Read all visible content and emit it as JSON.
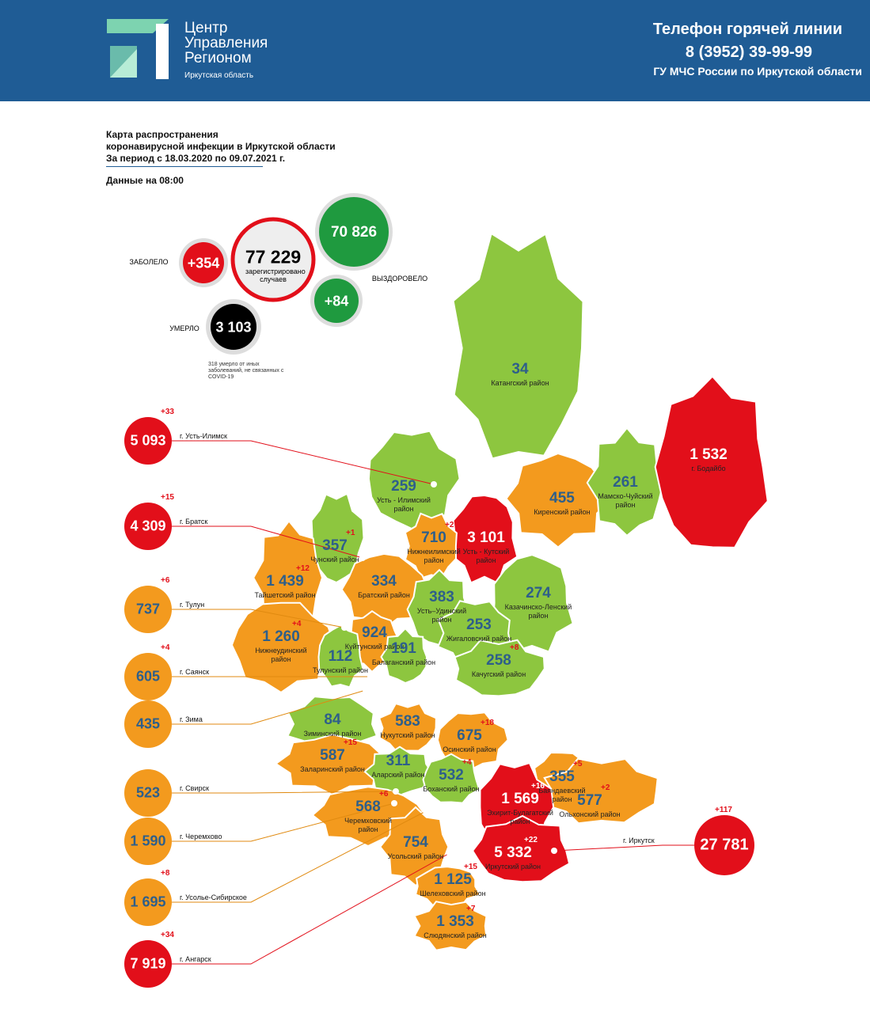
{
  "header": {
    "logo_lines": [
      "Центр",
      "Управления",
      "Регионом"
    ],
    "logo_region": "Иркутская область",
    "hotline_title": "Телефон горячей линии",
    "hotline_phone": "8 (3952) 39-99-99",
    "hotline_org": "ГУ МЧС России по Иркутской области"
  },
  "title": {
    "lines": [
      "Карта распространения",
      "коронавирусной инфекции в Иркутской области",
      "За период с 18.03.2020 по 09.07.2021 г."
    ],
    "data_time": "Данные на 08:00"
  },
  "stats": {
    "infected_label": "ЗАБОЛЕЛО",
    "infected_delta": "+354",
    "total": "77 229",
    "total_caption": "зарегистрировано случаев",
    "recovered": "70 826",
    "recovered_label": "ВЫЗДОРОВЕЛО",
    "recovered_delta": "+84",
    "died_label": "УМЕРЛО",
    "died": "3 103",
    "died_note": "318 умерло от иных заболеваний, не связанных с COVID-19"
  },
  "districts": [
    {
      "value": "34",
      "name": "Катангский район",
      "color": "#8dc63f"
    },
    {
      "value": "259",
      "name": "Усть - Илимский район",
      "color": "#8dc63f"
    },
    {
      "value": "455",
      "name": "Киренский район",
      "color": "#f39a1e"
    },
    {
      "value": "261",
      "name": "Мамско-Чуйский район",
      "color": "#8dc63f"
    },
    {
      "value": "1 532",
      "name": "г. Бодайбо",
      "color": "#e20f1a"
    },
    {
      "value": "3 101",
      "name": "Усть - Кутский район",
      "color": "#e20f1a"
    },
    {
      "value": "710",
      "name": "Нижнеилимский район",
      "delta": "+2",
      "color": "#f39a1e"
    },
    {
      "value": "357",
      "name": "Чунский район",
      "delta": "+1",
      "color": "#8dc63f"
    },
    {
      "value": "334",
      "name": "Братский район",
      "color": "#f39a1e"
    },
    {
      "value": "1 439",
      "name": "Тайшетский район",
      "delta": "+12",
      "color": "#f39a1e"
    },
    {
      "value": "383",
      "name": "Усть–Удинский район",
      "color": "#8dc63f"
    },
    {
      "value": "274",
      "name": "Казачинско-Ленский район",
      "color": "#8dc63f"
    },
    {
      "value": "253",
      "name": "Жигаловский район",
      "color": "#8dc63f"
    },
    {
      "value": "258",
      "name": "Качугский район",
      "delta": "+8",
      "color": "#8dc63f"
    },
    {
      "value": "1 260",
      "name": "Нижнеудинский район",
      "delta": "+4",
      "color": "#f39a1e"
    },
    {
      "value": "924",
      "name": "Куйтунский район",
      "color": "#f39a1e"
    },
    {
      "value": "191",
      "name": "Балаганский район",
      "color": "#8dc63f"
    },
    {
      "value": "112",
      "name": "Тулунский район",
      "color": "#8dc63f"
    },
    {
      "value": "84",
      "name": "Зиминский район",
      "color": "#8dc63f"
    },
    {
      "value": "583",
      "name": "Нукутский район",
      "color": "#f39a1e"
    },
    {
      "value": "675",
      "name": "Осинский район",
      "delta": "+18",
      "color": "#f39a1e"
    },
    {
      "value": "587",
      "name": "Заларинский район",
      "delta": "+15",
      "color": "#f39a1e"
    },
    {
      "value": "311",
      "name": "Аларский район",
      "color": "#8dc63f"
    },
    {
      "value": "532",
      "name": "Боханский район",
      "delta": "+4",
      "color": "#8dc63f"
    },
    {
      "value": "355",
      "name": "Баяндаевский район",
      "delta": "+5",
      "color": "#f39a1e"
    },
    {
      "value": "577",
      "name": "Ольхонский район",
      "delta": "+2",
      "color": "#f39a1e"
    },
    {
      "value": "1 569",
      "name": "Эхирит-Булагатский район",
      "delta": "+16",
      "color": "#e20f1a"
    },
    {
      "value": "568",
      "name": "Черемховский район",
      "delta": "+6",
      "color": "#f39a1e"
    },
    {
      "value": "754",
      "name": "Усольский район",
      "color": "#f39a1e"
    },
    {
      "value": "5 332",
      "name": "Иркутский район",
      "delta": "+22",
      "color": "#e20f1a"
    },
    {
      "value": "1 125",
      "name": "Шелеховский район",
      "delta": "+15",
      "color": "#f39a1e"
    },
    {
      "value": "1 353",
      "name": "Слюдянский район",
      "delta": "+7",
      "color": "#f39a1e"
    }
  ],
  "cities": [
    {
      "value": "5 093",
      "name": "г. Усть-Илимск",
      "delta": "+33",
      "color": "#e20f1a"
    },
    {
      "value": "4 309",
      "name": "г. Братск",
      "delta": "+15",
      "color": "#e20f1a"
    },
    {
      "value": "737",
      "name": "г. Тулун",
      "delta": "+6",
      "color": "#f39a1e"
    },
    {
      "value": "605",
      "name": "г. Саянск",
      "delta": "+4",
      "color": "#f39a1e"
    },
    {
      "value": "435",
      "name": "г. Зима",
      "color": "#f39a1e"
    },
    {
      "value": "523",
      "name": "г. Свирск",
      "color": "#f39a1e"
    },
    {
      "value": "1 590",
      "name": "г. Черемхово",
      "color": "#f39a1e"
    },
    {
      "value": "1 695",
      "name": "г. Усолье-Сибирское",
      "delta": "+8",
      "color": "#f39a1e"
    },
    {
      "value": "7 919",
      "name": "г. Ангарск",
      "delta": "+34",
      "color": "#e20f1a"
    },
    {
      "value": "27 781",
      "name": "г. Иркутск",
      "delta": "+117",
      "color": "#e20f1a"
    }
  ]
}
